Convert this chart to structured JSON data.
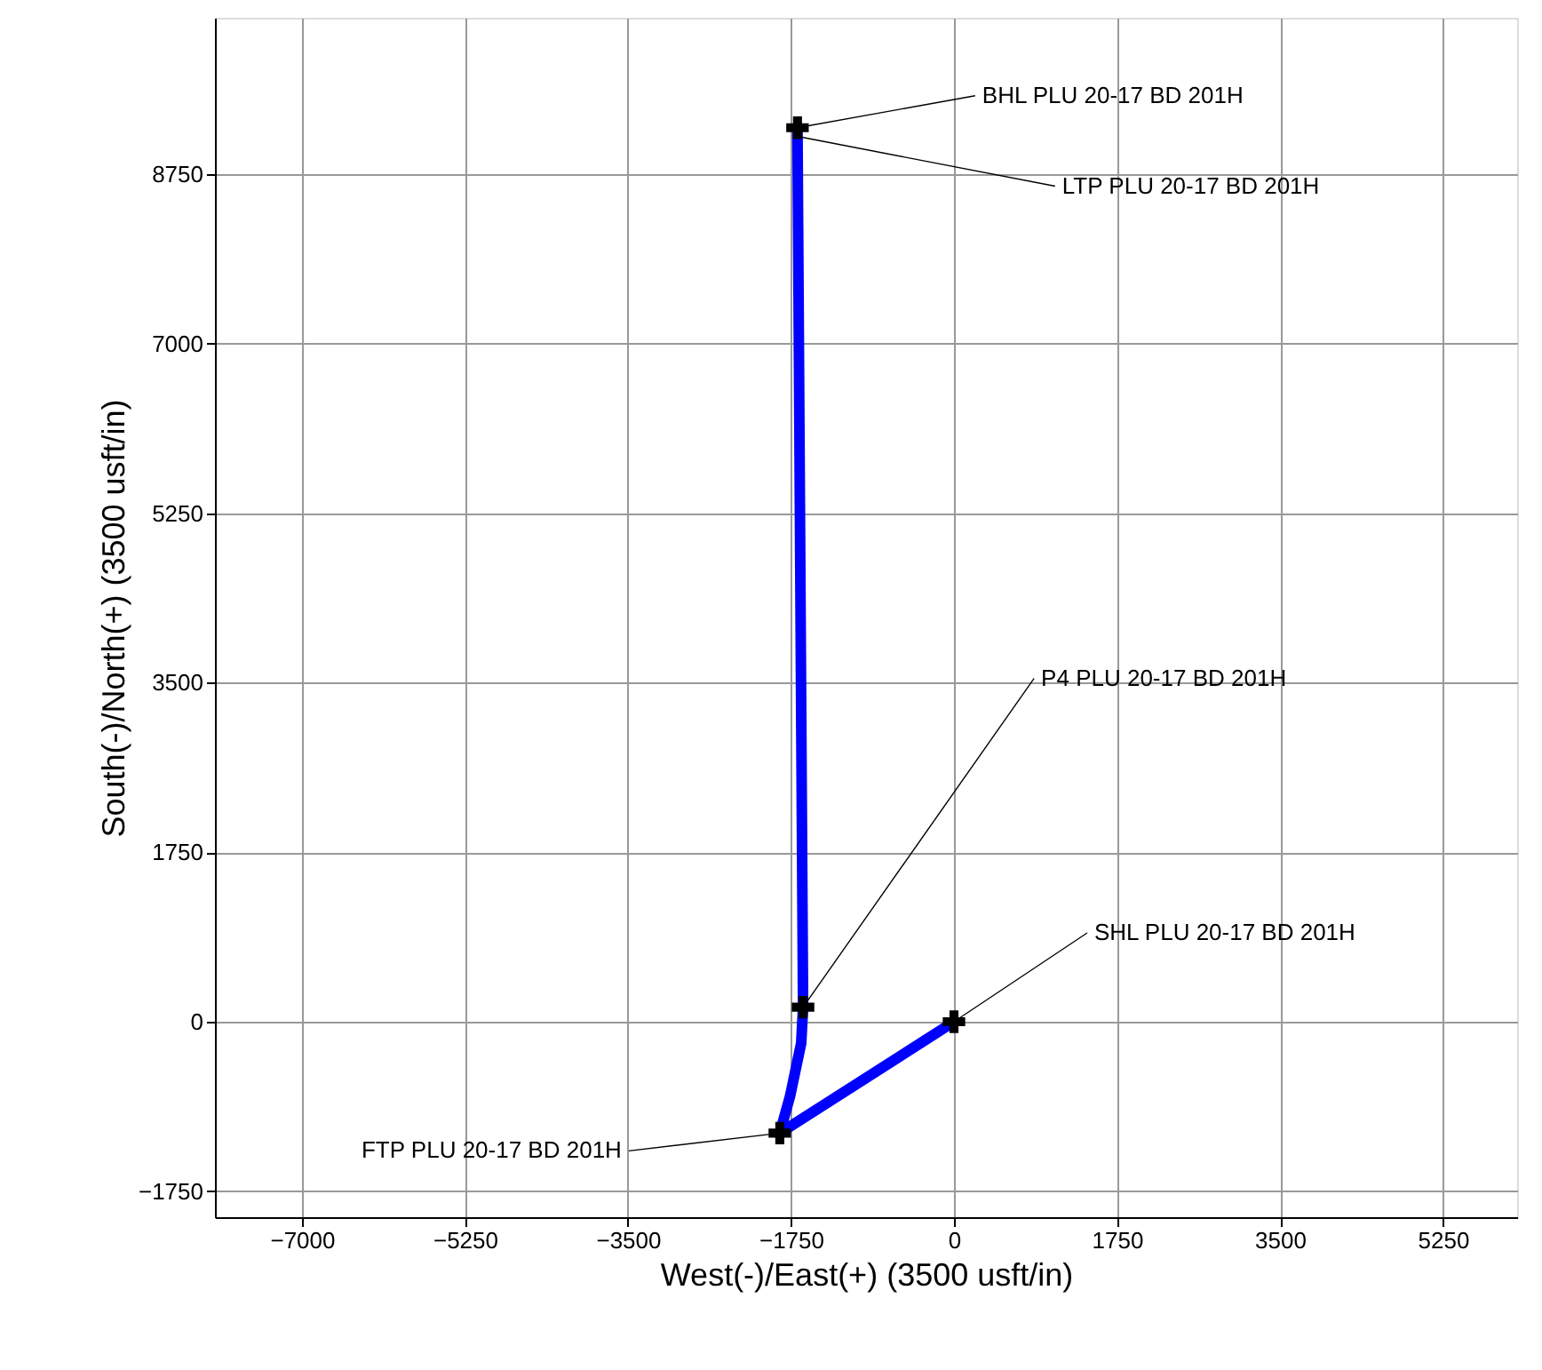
{
  "chart_data": {
    "type": "line",
    "xlabel": "West(-)/East(+) (3500 usft/in)",
    "ylabel": "South(-)/North(+) (3500 usft/in)",
    "xlim": [
      -7934,
      6046
    ],
    "ylim": [
      -2018,
      10365
    ],
    "xticks": [
      -7000,
      -5250,
      -3500,
      -1750,
      0,
      1750,
      3500,
      5250
    ],
    "yticks": [
      -1750,
      0,
      1750,
      3500,
      5250,
      7000,
      8750
    ],
    "grid": true,
    "series": [
      {
        "color": "#0000ff",
        "x": [
          0,
          -1870,
          -1760,
          -1640,
          -1620,
          -1680
        ],
        "values": [
          0,
          -1150,
          -770,
          -220,
          150,
          9230
        ],
        "line_style": "solid",
        "marker": "none"
      },
      {
        "type": "scatter",
        "color": "#000000",
        "x": [
          0,
          -1870,
          -1620,
          -1680
        ],
        "values": [
          0,
          -1150,
          150,
          9230
        ],
        "marker": "cross"
      }
    ],
    "annotations": [
      {
        "text": "BHL PLU 20-17 BD 201H",
        "x": -1680,
        "y": 9230
      },
      {
        "text": "LTP PLU 20-17 BD 201H",
        "x": -1680,
        "y": 9140
      },
      {
        "text": "P4 PLU 20-17 BD 201H",
        "x": -1620,
        "y": 150
      },
      {
        "text": "SHL PLU 20-17 BD 201H",
        "x": 0,
        "y": 0
      },
      {
        "text": "FTP PLU 20-17 BD 201H",
        "x": -1870,
        "y": -1150
      }
    ]
  }
}
